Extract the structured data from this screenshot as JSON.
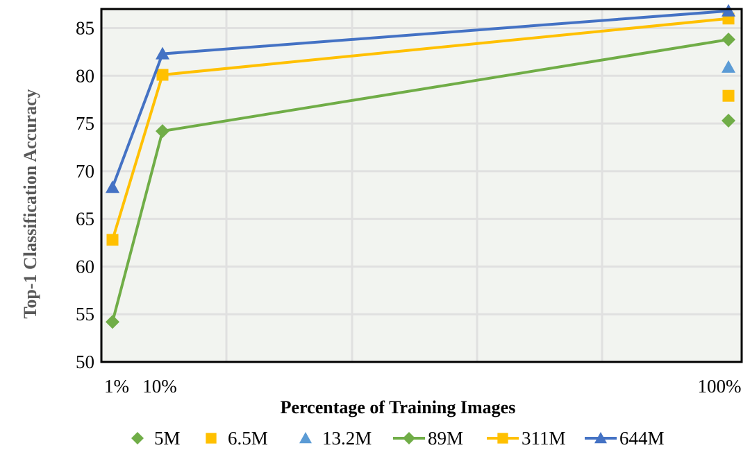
{
  "chart_data": {
    "type": "line",
    "xlabel": "Percentage of Training Images",
    "ylabel": "Top-1 Classification Accuracy",
    "x": [
      1,
      10,
      100
    ],
    "x_tick_labels": [
      "1%",
      "10%",
      "100%"
    ],
    "ylim": [
      50,
      87
    ],
    "yticks": [
      50,
      55,
      60,
      65,
      70,
      75,
      80,
      85
    ],
    "grid": true,
    "legend_position": "bottom",
    "series": [
      {
        "name": "5M",
        "kind": "marker",
        "marker": "diamond",
        "color": "#70AD47",
        "points": [
          [
            100,
            75.3
          ]
        ]
      },
      {
        "name": "6.5M",
        "kind": "marker",
        "marker": "square",
        "color": "#FFC000",
        "points": [
          [
            100,
            77.9
          ]
        ]
      },
      {
        "name": "13.2M",
        "kind": "marker",
        "marker": "triangle",
        "color": "#5B9BD5",
        "points": [
          [
            100,
            80.9
          ]
        ]
      },
      {
        "name": "89M",
        "kind": "line",
        "marker": "diamond",
        "color": "#70AD47",
        "points": [
          [
            1,
            54.2
          ],
          [
            10,
            74.2
          ],
          [
            100,
            83.8
          ]
        ]
      },
      {
        "name": "311M",
        "kind": "line",
        "marker": "square",
        "color": "#FFC000",
        "points": [
          [
            1,
            62.8
          ],
          [
            10,
            80.1
          ],
          [
            100,
            86.0
          ]
        ]
      },
      {
        "name": "644M",
        "kind": "line",
        "marker": "triangle",
        "color": "#4472C4",
        "points": [
          [
            1,
            68.3
          ],
          [
            10,
            82.3
          ],
          [
            100,
            86.8
          ]
        ]
      }
    ]
  }
}
